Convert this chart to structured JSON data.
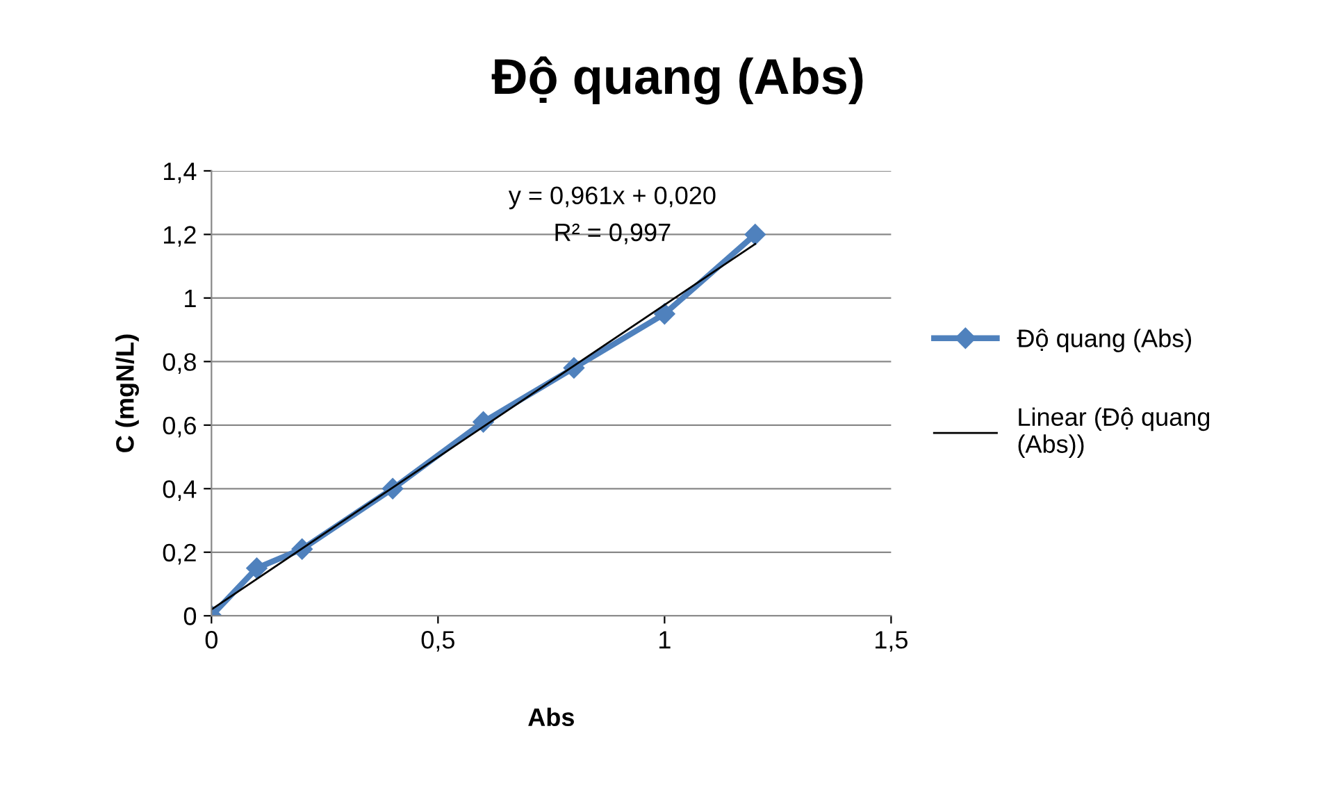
{
  "chart_data": {
    "type": "line",
    "title": "Độ quang (Abs)",
    "xlabel": "Abs",
    "ylabel": "C (mgN/L)",
    "series": [
      {
        "name": "Độ quang (Abs)",
        "color": "#4f81bd",
        "x": [
          0,
          0.1,
          0.2,
          0.4,
          0.6,
          0.8,
          1.0,
          1.2
        ],
        "values": [
          0,
          0.15,
          0.21,
          0.4,
          0.61,
          0.78,
          0.95,
          1.2
        ],
        "marker": "diamond",
        "line_style": "solid"
      },
      {
        "name": "Linear (Độ quang (Abs))",
        "color": "#000000",
        "x": [
          0,
          1.2
        ],
        "values": [
          0.02,
          1.17
        ],
        "marker": "none",
        "line_style": "solid"
      }
    ],
    "annotations": [
      "y = 0,961x + 0,020",
      "R² = 0,997"
    ],
    "xlim": [
      0,
      1.5
    ],
    "xticks": [
      0,
      {
        "value": 0.5,
        "label": "0,5"
      },
      1,
      {
        "value": 1.5,
        "label": "1,5"
      }
    ],
    "ylim": [
      0,
      1.4
    ],
    "yticks": [
      0,
      {
        "value": 0.2,
        "label": "0,2"
      },
      {
        "value": 0.4,
        "label": "0,4"
      },
      {
        "value": 0.6,
        "label": "0,6"
      },
      {
        "value": 0.8,
        "label": "0,8"
      },
      1,
      {
        "value": 1.2,
        "label": "1,2"
      },
      {
        "value": 1.4,
        "label": "1,4"
      }
    ],
    "grid": "y",
    "legend": "right"
  }
}
